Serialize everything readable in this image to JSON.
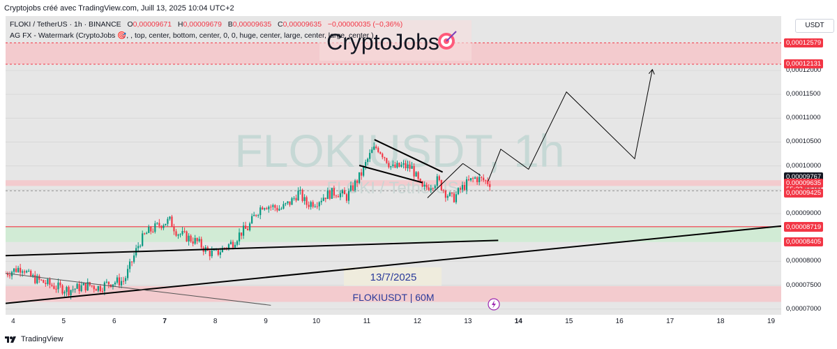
{
  "caption": "Cryptojobs créé avec TradingView.com, Juill 13, 2025 10:04 UTC+2",
  "legend": {
    "symbol": "FLOKI / TetherUS · 1h · BINANCE",
    "o_label": "O",
    "o_value": "0,00009671",
    "h_label": "H",
    "h_value": "0,00009679",
    "b_label": "B",
    "b_value": "0,00009635",
    "c_label": "C",
    "c_value": "0,00009635",
    "change": "−0,00000035 (−0,36%)",
    "indicator": "AG FX - Watermark (CryptoJobs 🎯, , top, center, bottom, center, 0, 0, huge, center, large, center, large, center )"
  },
  "watermark": {
    "brand": "CryptoJobs",
    "brand_icon": "target-icon",
    "big": "FLOKIUSDT, 1h",
    "small": "FLOKI / TetherUS",
    "date": "13/7/2025",
    "footer_label": "FLOKIUSDT | 60M"
  },
  "currency": "USDT",
  "footer": "TradingView",
  "colors": {
    "up": "#089981",
    "down": "#f23645",
    "zone_red": "#f5c6c9",
    "zone_green": "#cdebd1",
    "tag_red": "#f23645",
    "tag_dark": "#131722"
  },
  "chart_data": {
    "type": "candlestick",
    "symbol": "FLOKIUSDT",
    "timeframe": "1h",
    "y_axis": {
      "ticks": [
        7e-05,
        7.5e-05,
        8e-05,
        9e-05,
        9.5e-05,
        0.0001,
        0.000105,
        0.00011,
        0.000115,
        0.00012
      ],
      "tick_labels": [
        "0,00007000",
        "0,00007500",
        "0,00008000",
        "0,00009000",
        "0,00009500",
        "0,00010000",
        "0,00010500",
        "0,00011000",
        "0,00011500",
        "0,00012000"
      ],
      "range": [
        6.88e-05,
        0.0001314
      ]
    },
    "x_axis": {
      "ticks": [
        "4",
        "5",
        "6",
        "7",
        "8",
        "9",
        "10",
        "11",
        "12",
        "13",
        "14",
        "15",
        "16",
        "17",
        "18",
        "19"
      ],
      "bold": [
        "7",
        "14"
      ],
      "range_days": [
        3.85,
        19.2
      ]
    },
    "price_tags": [
      {
        "label": "0,00012579",
        "value": 0.00012579,
        "style": "red"
      },
      {
        "label": "0,00012131",
        "value": 0.00012131,
        "style": "red"
      },
      {
        "label": "0,00009767",
        "value": 9.767e-05,
        "style": "dark"
      },
      {
        "label": "0,00009635",
        "value": 9.635e-05,
        "style": "red"
      },
      {
        "label": "55:32",
        "value": 9.51e-05,
        "style": "red"
      },
      {
        "label": "0,00009425",
        "value": 9.425e-05,
        "style": "red"
      },
      {
        "label": "0,00008726",
        "value": 8.726e-05,
        "style": "red"
      },
      {
        "label": "0,00008719",
        "value": 8.719e-05,
        "style": "red"
      },
      {
        "label": "0,00008405",
        "value": 8.405e-05,
        "style": "red"
      }
    ],
    "zones": [
      {
        "kind": "resistance",
        "from": 0.00012131,
        "to": 0.00012579,
        "x_start": 3.85,
        "x_end": 19.2
      },
      {
        "kind": "resistance",
        "from": 9.58e-05,
        "to": 9.7e-05,
        "x_start": 3.85,
        "x_end": 19.2
      },
      {
        "kind": "support",
        "from": 8.405e-05,
        "to": 8.726e-05,
        "x_start": 3.85,
        "x_end": 19.2
      },
      {
        "kind": "resistance",
        "from": 7.15e-05,
        "to": 7.48e-05,
        "x_start": 3.85,
        "x_end": 19.2
      }
    ],
    "ohlc_path": [
      [
        3.85,
        7.75e-05
      ],
      [
        4.1,
        7.85e-05
      ],
      [
        4.2,
        7.88e-05
      ],
      [
        4.3,
        7.7e-05
      ],
      [
        4.5,
        7.6e-05
      ],
      [
        4.7,
        7.52e-05
      ],
      [
        4.9,
        7.45e-05
      ],
      [
        5.1,
        7.4e-05
      ],
      [
        5.3,
        7.45e-05
      ],
      [
        5.5,
        7.5e-05
      ],
      [
        5.7,
        7.45e-05
      ],
      [
        5.9,
        7.55e-05
      ],
      [
        6.1,
        7.58e-05
      ],
      [
        6.2,
        7.6e-05
      ],
      [
        6.35,
        8e-05
      ],
      [
        6.5,
        8.4e-05
      ],
      [
        6.65,
        8.6e-05
      ],
      [
        6.8,
        8.7e-05
      ],
      [
        6.95,
        8.8e-05
      ],
      [
        7.1,
        8.85e-05
      ],
      [
        7.25,
        8.6e-05
      ],
      [
        7.45,
        8.5e-05
      ],
      [
        7.65,
        8.4e-05
      ],
      [
        7.85,
        8.2e-05
      ],
      [
        8.0,
        8.15e-05
      ],
      [
        8.2,
        8.3e-05
      ],
      [
        8.35,
        8.4e-05
      ],
      [
        8.5,
        8.6e-05
      ],
      [
        8.65,
        8.7e-05
      ],
      [
        8.8,
        9e-05
      ],
      [
        8.95,
        9.2e-05
      ],
      [
        9.1,
        9.15e-05
      ],
      [
        9.3,
        9.1e-05
      ],
      [
        9.5,
        9.25e-05
      ],
      [
        9.65,
        9.45e-05
      ],
      [
        9.8,
        9.2e-05
      ],
      [
        10.0,
        9.25e-05
      ],
      [
        10.2,
        9.4e-05
      ],
      [
        10.4,
        9.45e-05
      ],
      [
        10.6,
        9.35e-05
      ],
      [
        10.75,
        9.6e-05
      ],
      [
        10.9,
        9.85e-05
      ],
      [
        11.0,
        0.000101
      ],
      [
        11.1,
        0.000103
      ],
      [
        11.2,
        0.000104
      ],
      [
        11.35,
        0.000102
      ],
      [
        11.5,
        9.95e-05
      ],
      [
        11.7,
        0.0001
      ],
      [
        11.9,
        9.95e-05
      ],
      [
        12.0,
        9.7e-05
      ],
      [
        12.1,
        9.5e-05
      ],
      [
        12.25,
        9.6e-05
      ],
      [
        12.4,
        9.7e-05
      ],
      [
        12.55,
        9.45e-05
      ],
      [
        12.7,
        9.3e-05
      ],
      [
        12.85,
        9.5e-05
      ],
      [
        13.0,
        9.65e-05
      ],
      [
        13.15,
        9.75e-05
      ],
      [
        13.3,
        9.7e-05
      ],
      [
        13.45,
        9.64e-05
      ]
    ],
    "drawings": {
      "rising_trendline": [
        [
          3.85,
          7.12e-05
        ],
        [
          19.2,
          8.74e-05
        ]
      ],
      "flat_trendline": [
        [
          3.85,
          8.12e-05
        ],
        [
          13.6,
          8.44e-05
        ]
      ],
      "descending_line": [
        [
          3.85,
          7.75e-05
        ],
        [
          9.1,
          7.08e-05
        ]
      ],
      "flag_upper": [
        [
          11.15,
          0.0001055
        ],
        [
          12.5,
          9.87e-05
        ]
      ],
      "flag_lower": [
        [
          10.85,
          0.0001001
        ],
        [
          12.1,
          9.65e-05
        ]
      ],
      "wedge_arm": [
        [
          12.2,
          9.33e-05
        ],
        [
          12.9,
          0.0001005
        ]
      ],
      "wedge_peak": [
        [
          12.9,
          0.0001005
        ],
        [
          13.25,
          9.8e-05
        ]
      ],
      "projection": [
        [
          13.4,
          9.68e-05
        ],
        [
          13.65,
          0.0001035
        ],
        [
          14.2,
          9.93e-05
        ],
        [
          14.95,
          0.0001155
        ],
        [
          16.3,
          0.0001015
        ],
        [
          16.65,
          0.0001202
        ]
      ]
    }
  }
}
